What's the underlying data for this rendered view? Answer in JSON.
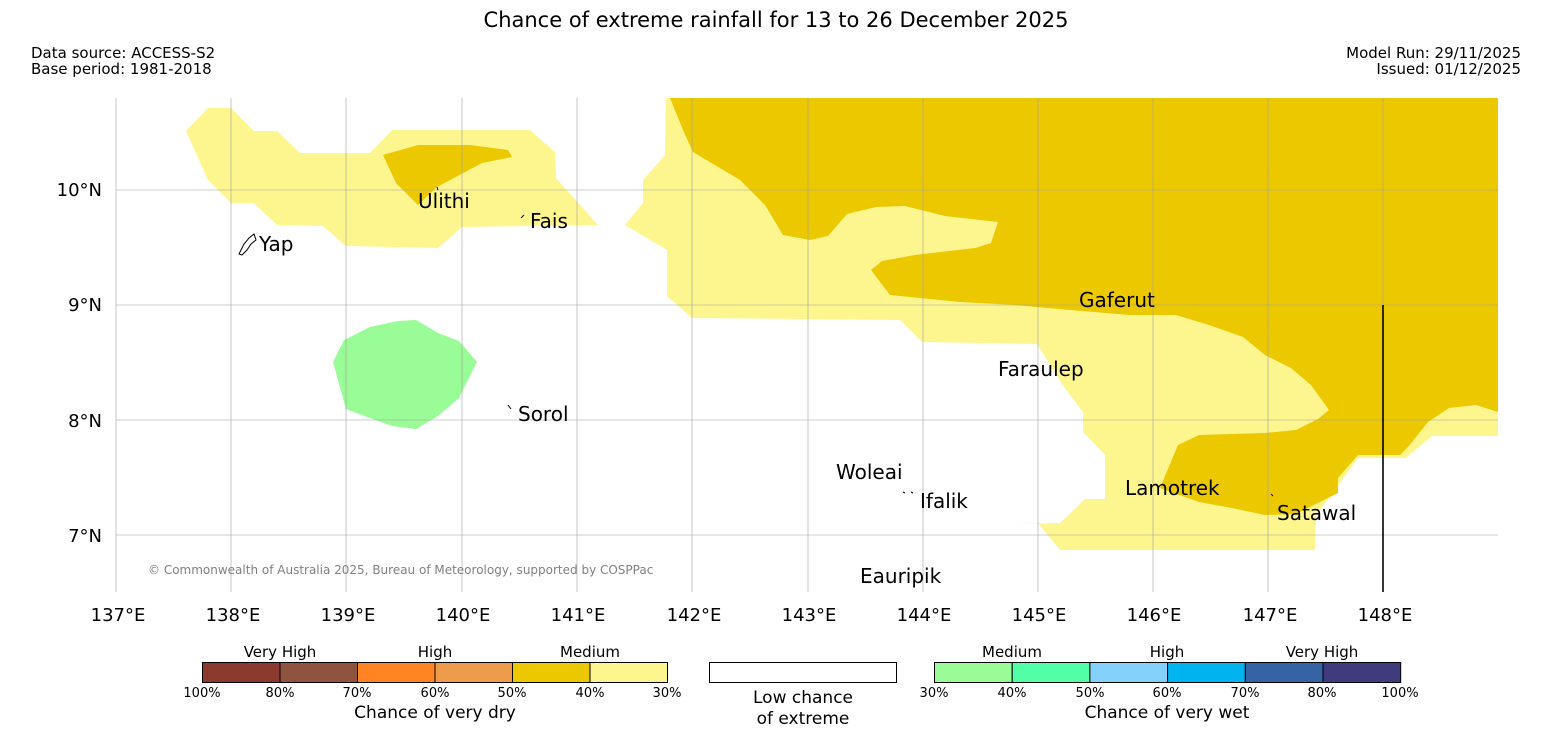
{
  "header": {
    "title": "Chance of extreme rainfall for 13 to 26 December 2025",
    "data_source": "Data source: ACCESS-S2",
    "base_period": "Base period: 1981-2018",
    "model_run": "Model Run: 29/11/2025",
    "issued": "Issued: 01/12/2025"
  },
  "map": {
    "lat_labels": [
      "10°N",
      "9°N",
      "8°N",
      "7°N"
    ],
    "lon_labels": [
      "137°E",
      "138°E",
      "139°E",
      "140°E",
      "141°E",
      "142°E",
      "143°E",
      "144°E",
      "145°E",
      "146°E",
      "147°E",
      "148°E"
    ],
    "places": [
      "Ulithi",
      "Fais",
      "Yap",
      "Gaferut",
      "Faraulep",
      "Sorol",
      "Woleai",
      "Ifalik",
      "Lamotrek",
      "Satawal",
      "Eauripik"
    ],
    "copyright": "© Commonwealth of Australia 2025, Bureau of Meteorology, supported by COSPPac",
    "colors": {
      "dry_40_50": "#ecc800",
      "dry_30_40": "#fdf58e",
      "wet_30_40": "#9afc96",
      "grid": "#a0a0a0"
    }
  },
  "legend": {
    "dry": {
      "categories": [
        "Very High",
        "High",
        "Medium"
      ],
      "ticks": [
        "100%",
        "80%",
        "70%",
        "60%",
        "50%",
        "40%",
        "30%"
      ],
      "colors": [
        "#8c3a30",
        "#8e5440",
        "#ff8524",
        "#ee9c4c",
        "#ecc800",
        "#fdf58e"
      ],
      "title": "Chance of very dry"
    },
    "neutral": {
      "line1": "Low chance",
      "line2": "of extreme",
      "color": "#ffffff"
    },
    "wet": {
      "categories": [
        "Medium",
        "High",
        "Very High"
      ],
      "ticks": [
        "30%",
        "40%",
        "50%",
        "60%",
        "70%",
        "80%",
        "100%"
      ],
      "colors": [
        "#9afc96",
        "#52fea6",
        "#84d1fc",
        "#00b4f0",
        "#3663a6",
        "#3e3c7c"
      ],
      "title": "Chance of very wet"
    }
  }
}
